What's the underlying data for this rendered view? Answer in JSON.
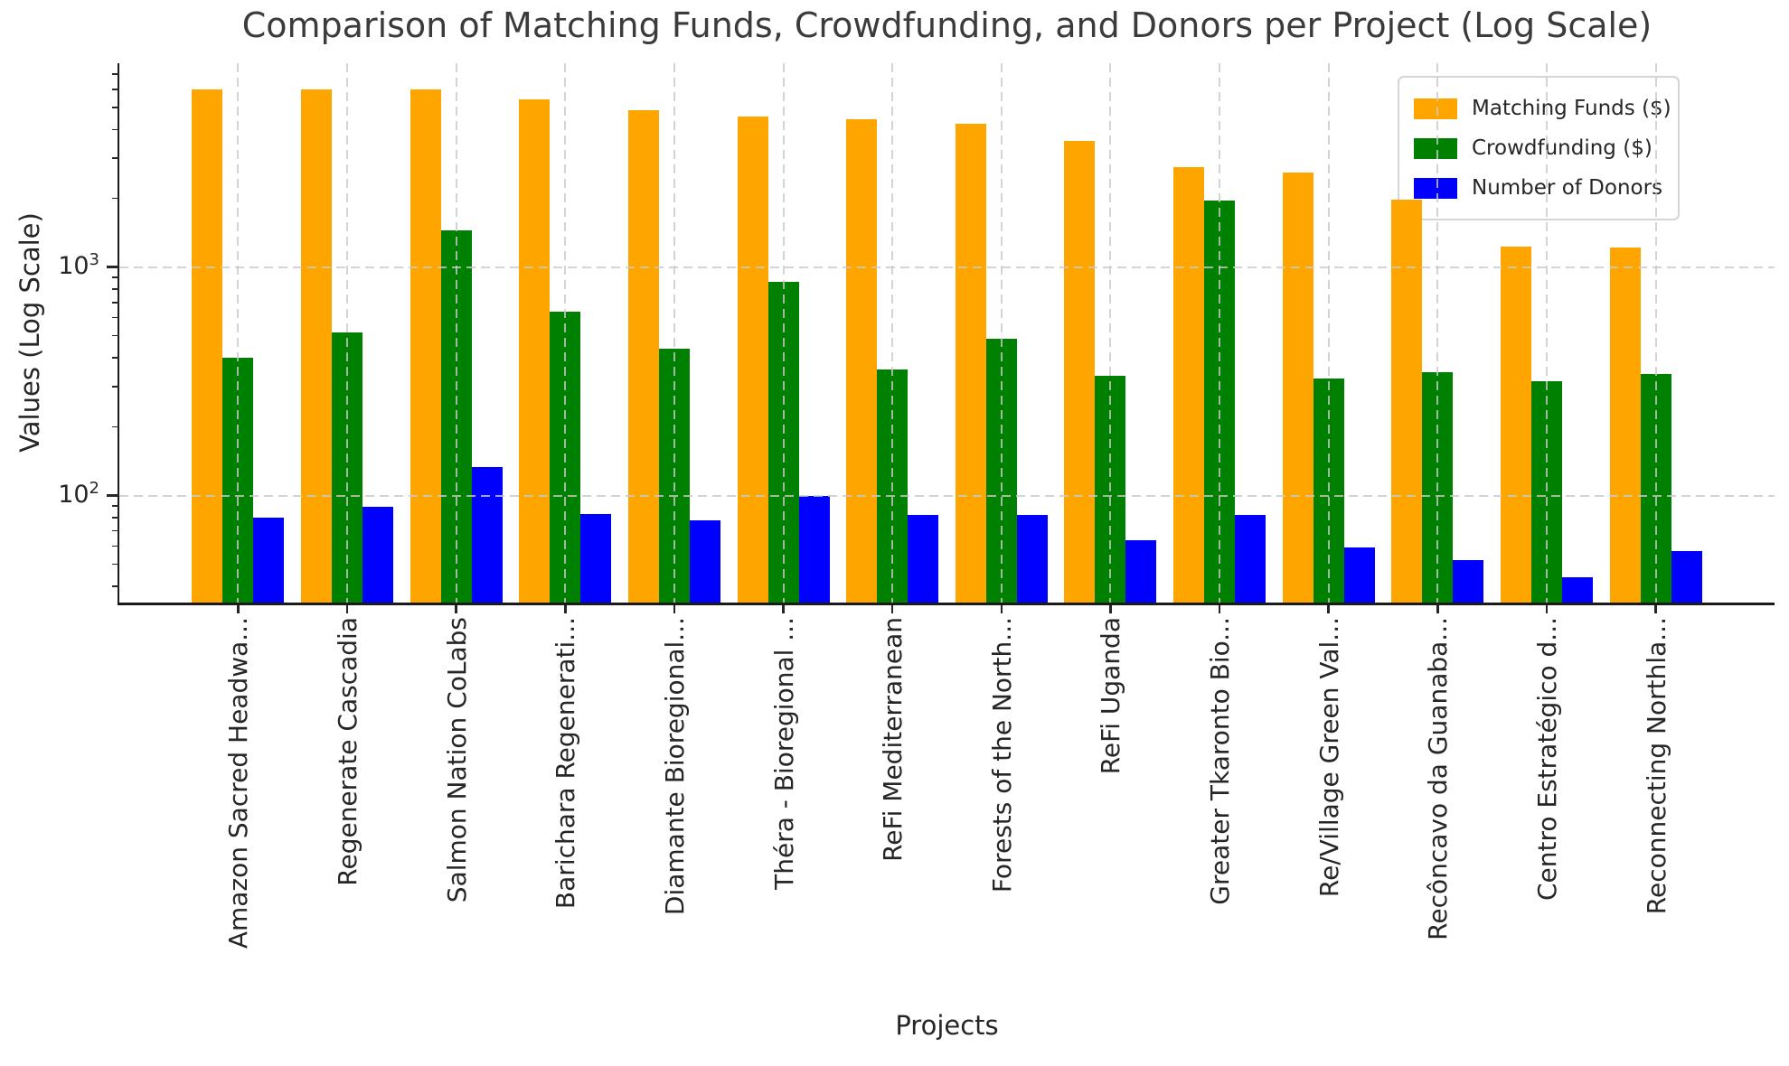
{
  "title": "Comparison of Matching Funds, Crowdfunding, and Donors per Project (Log Scale)",
  "x_axis_label": "Projects",
  "y_axis_label": "Values (Log Scale)",
  "y_ticks": [
    {
      "value": 1000,
      "base": "10",
      "exp": "3"
    },
    {
      "value": 100,
      "base": "10",
      "exp": "2"
    }
  ],
  "colors": {
    "matching_funds": "#ffa500",
    "crowdfunding": "#008000",
    "donors": "#0000ff",
    "grid": "#c9c9c9",
    "spine": "#1a1a1a",
    "text": "#262626",
    "title_text": "#3b3b3b"
  },
  "chart_data": {
    "type": "bar",
    "log_scale_y": true,
    "title": "Comparison of Matching Funds, Crowdfunding, and Donors per Project (Log Scale)",
    "xlabel": "Projects",
    "ylabel": "Values (Log Scale)",
    "ylim": [
      34,
      7800
    ],
    "grid": "dashed, horizontal at powers of 10 and vertical at each category, drawn over bars",
    "legend_position": "upper right",
    "categories": [
      "Amazon Sacred Headwa...",
      "Regenerate Cascadia",
      "Salmon Nation CoLabs",
      "Barichara Regenerati...",
      "Diamante Bioregional...",
      "Théra - Bioregional ...",
      "ReFi Mediterranean",
      "Forests of the North...",
      "ReFi Uganda",
      "Greater Tkaronto Bio...",
      "Re/Village Green Val...",
      "Recôncavo da Guanaba...",
      "Centro Estratégico d...",
      "Reconnecting Northla..."
    ],
    "series": [
      {
        "name": "Matching Funds ($)",
        "color": "#ffa500",
        "values": [
          6000,
          6000,
          6000,
          5400,
          4850,
          4550,
          4450,
          4250,
          3550,
          2750,
          2600,
          1980,
          1230,
          1220
        ]
      },
      {
        "name": "Crowdfunding ($)",
        "color": "#008000",
        "values": [
          400,
          515,
          1450,
          640,
          440,
          860,
          355,
          485,
          335,
          1950,
          325,
          345,
          315,
          340
        ]
      },
      {
        "name": "Number of Donors",
        "color": "#0000ff",
        "values": [
          80,
          89,
          133,
          83,
          78,
          100,
          82,
          82,
          64,
          82,
          59,
          52,
          44,
          57
        ]
      }
    ]
  }
}
